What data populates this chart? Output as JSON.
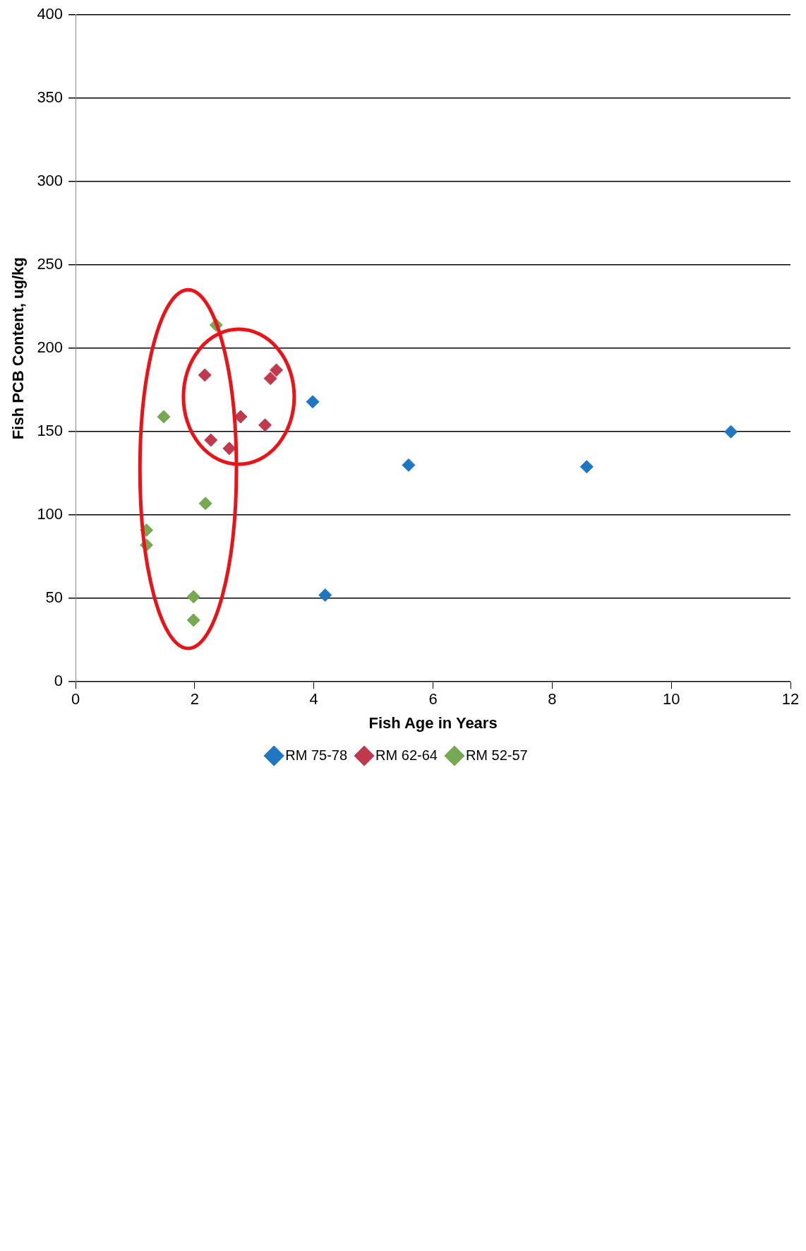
{
  "chart_data": {
    "type": "scatter",
    "xlabel": "Fish Age in Years",
    "ylabel": "Fish PCB Content, ug/kg",
    "xlim": [
      0,
      12
    ],
    "xticks": [
      0,
      2,
      4,
      6,
      8,
      10,
      12
    ],
    "ylim": [
      0,
      400
    ],
    "yticks": [
      0,
      50,
      100,
      150,
      200,
      250,
      300,
      350,
      400
    ],
    "grid": "y",
    "legend": "bottom",
    "marker": "diamond",
    "series": [
      {
        "name": "RM 75-78",
        "color": "#1f77c4",
        "x": [
          11,
          8.58,
          5.59,
          3.98,
          4.19
        ],
        "values": [
          150,
          129,
          130,
          168,
          52
        ]
      },
      {
        "name": "RM 62-64",
        "color": "#c0394d",
        "x": [
          3.37,
          3.27,
          3.18,
          2.77,
          2.58,
          2.27,
          2.17
        ],
        "values": [
          187,
          182,
          154,
          159,
          140,
          145,
          184
        ]
      },
      {
        "name": "RM 52-57",
        "color": "#77a852",
        "x": [
          2.36,
          2.18,
          1.98,
          1.98,
          1.48,
          1.19,
          1.19
        ],
        "values": [
          214,
          107,
          51,
          37,
          159,
          91,
          82
        ]
      }
    ]
  }
}
